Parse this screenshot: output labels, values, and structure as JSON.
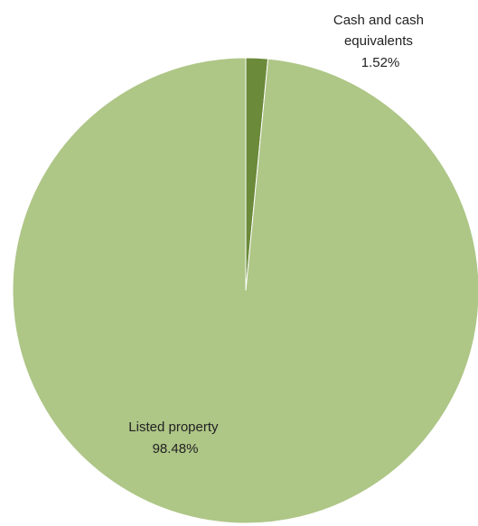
{
  "chart_data": {
    "type": "pie",
    "slices": [
      {
        "label_lines": [
          "Cash and cash",
          "equivalents"
        ],
        "value": 1.52,
        "value_label": "1.52%",
        "color": "#6b8a3a"
      },
      {
        "label_lines": [
          "Listed property"
        ],
        "value": 98.48,
        "value_label": "98.48%",
        "color": "#aec686"
      }
    ],
    "start_angle_deg": 0,
    "direction": "clockwise",
    "legend": "none",
    "title": ""
  }
}
